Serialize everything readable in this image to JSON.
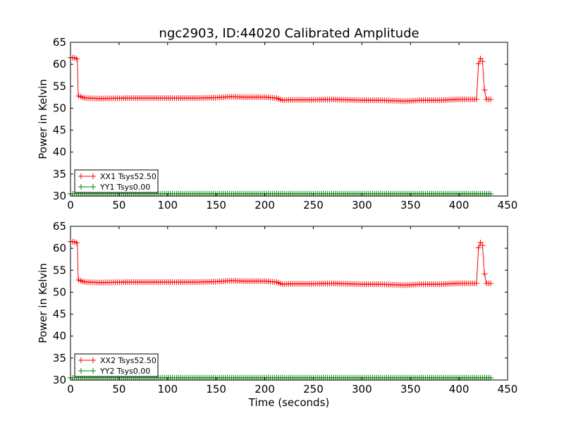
{
  "title": "ngc2903, ID:44020 Calibrated Amplitude",
  "chart_data": [
    {
      "type": "line",
      "ylabel": "Power in Kelvin",
      "xlabel": "",
      "xlim": [
        0,
        450
      ],
      "ylim": [
        30,
        65
      ],
      "xticks": [
        0,
        50,
        100,
        150,
        200,
        250,
        300,
        350,
        400,
        450
      ],
      "yticks": [
        30,
        35,
        40,
        45,
        50,
        55,
        60,
        65
      ],
      "grid": false,
      "legend": "lower-left",
      "series": [
        {
          "name": "XX1 Tsys52.50",
          "color": "#ff0000",
          "marker": "+",
          "x": [
            0,
            3,
            5,
            7,
            8,
            15,
            30,
            60,
            100,
            130,
            150,
            165,
            180,
            200,
            212,
            218,
            225,
            250,
            270,
            300,
            320,
            345,
            360,
            380,
            400,
            418,
            420,
            422,
            424,
            426,
            428,
            430,
            433
          ],
          "y": [
            61.5,
            61.5,
            61.4,
            61.2,
            52.8,
            52.3,
            52.2,
            52.3,
            52.3,
            52.3,
            52.4,
            52.6,
            52.5,
            52.5,
            52.3,
            51.8,
            51.9,
            51.9,
            52.0,
            51.8,
            51.8,
            51.6,
            51.8,
            51.8,
            52.0,
            52.0,
            60.1,
            61.3,
            61.3,
            54.5,
            52.0,
            52.0,
            52.0
          ]
        },
        {
          "name": "YY1 Tsys0.00",
          "color": "#008000",
          "marker": "+",
          "x": [
            0,
            100,
            200,
            300,
            400,
            433
          ],
          "y": [
            30.5,
            30.5,
            30.5,
            30.5,
            30.5,
            30.5
          ]
        }
      ]
    },
    {
      "type": "line",
      "ylabel": "Power in Kelvin",
      "xlabel": "Time (seconds)",
      "xlim": [
        0,
        450
      ],
      "ylim": [
        30,
        65
      ],
      "xticks": [
        0,
        50,
        100,
        150,
        200,
        250,
        300,
        350,
        400,
        450
      ],
      "yticks": [
        30,
        35,
        40,
        45,
        50,
        55,
        60,
        65
      ],
      "grid": false,
      "legend": "lower-left",
      "series": [
        {
          "name": "XX2 Tsys52.50",
          "color": "#ff0000",
          "marker": "+",
          "x": [
            0,
            3,
            5,
            7,
            8,
            15,
            30,
            60,
            100,
            130,
            150,
            165,
            180,
            200,
            212,
            218,
            225,
            250,
            270,
            300,
            320,
            345,
            360,
            380,
            400,
            418,
            420,
            422,
            424,
            426,
            428,
            430,
            433
          ],
          "y": [
            61.5,
            61.5,
            61.4,
            61.2,
            52.8,
            52.3,
            52.2,
            52.3,
            52.3,
            52.3,
            52.4,
            52.6,
            52.5,
            52.5,
            52.3,
            51.8,
            51.9,
            51.9,
            52.0,
            51.8,
            51.8,
            51.6,
            51.8,
            51.8,
            52.0,
            52.0,
            60.1,
            61.3,
            61.3,
            54.5,
            52.0,
            52.0,
            52.0
          ]
        },
        {
          "name": "YY2 Tsys0.00",
          "color": "#008000",
          "marker": "+",
          "x": [
            0,
            100,
            200,
            300,
            400,
            433
          ],
          "y": [
            30.5,
            30.5,
            30.5,
            30.5,
            30.5,
            30.5
          ]
        }
      ]
    }
  ]
}
